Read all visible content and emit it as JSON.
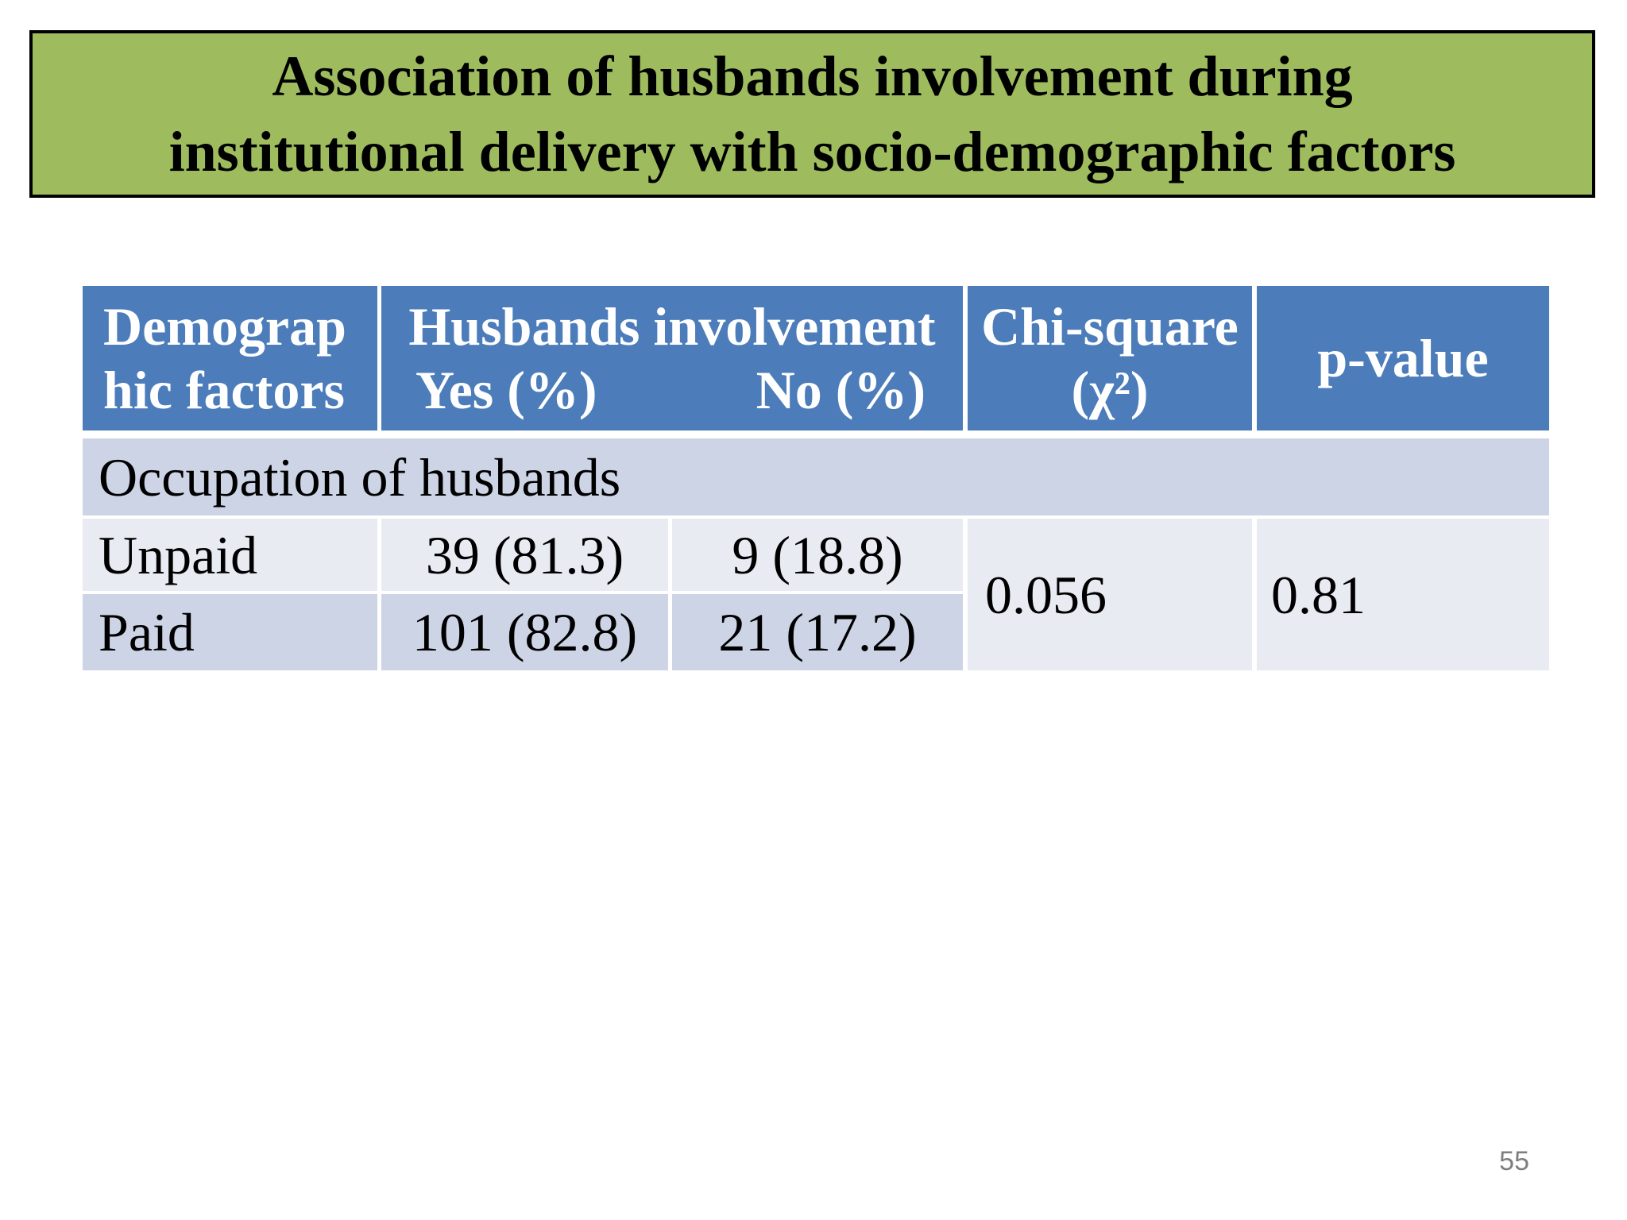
{
  "slide": {
    "title": "Association of husbands involvement during\ninstitutional delivery with socio-demographic factors",
    "page_number": "55",
    "colors": {
      "banner_bg": "#9EBC5E",
      "banner_border": "#000000",
      "header_bg": "#4C7DBA",
      "band_dark": "#CDD4E6",
      "band_light": "#E9EBF3",
      "header_text": "#FFFFFF",
      "body_text": "#000000",
      "page_number_text": "#7F7F7F"
    },
    "table": {
      "headers": {
        "demographic": "Demograp\nhic factors",
        "involvement": "Husbands involvement",
        "involvement_yes": "Yes (%)",
        "involvement_no": "No (%)",
        "chi_square": "Chi-square\n(χ²)",
        "p_value": "p-value"
      },
      "section_label": "Occupation of husbands",
      "rows": [
        {
          "factor": "Unpaid",
          "yes": "39 (81.3)",
          "no": "9 (18.8)"
        },
        {
          "factor": "Paid",
          "yes": "101 (82.8)",
          "no": "21 (17.2)"
        }
      ],
      "chi_square_value": "0.056",
      "p_value": "0.81"
    }
  }
}
